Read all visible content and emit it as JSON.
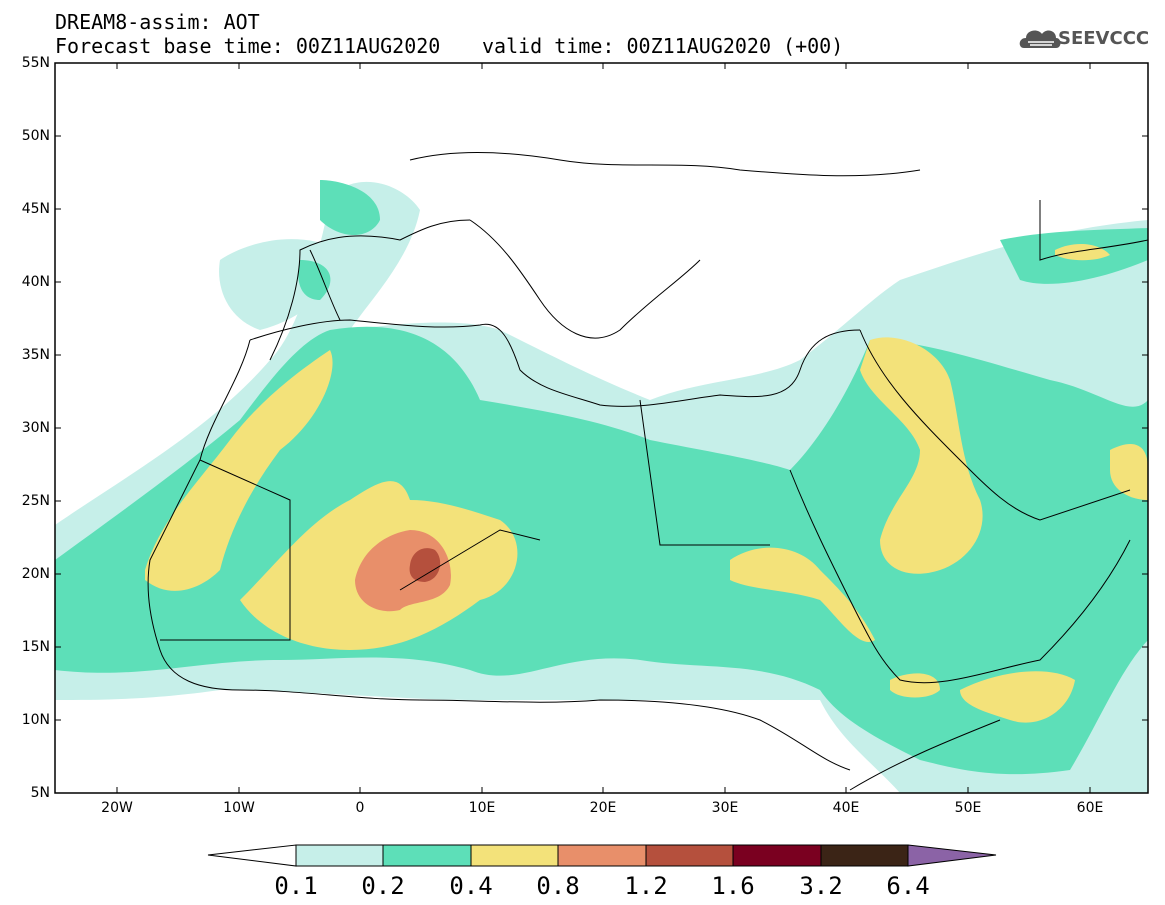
{
  "header": {
    "line1": "DREAM8-assim: AOT",
    "line2": "Forecast base time: 00Z11AUG2020",
    "valid": "valid time: 00Z11AUG2020 (+00)",
    "logo_text": "SEEVCCC",
    "logo_icon": "cloud-icon"
  },
  "axes": {
    "lat_labels": [
      "55N",
      "50N",
      "45N",
      "40N",
      "35N",
      "30N",
      "25N",
      "20N",
      "15N",
      "10N",
      "5N"
    ],
    "lon_labels": [
      "20W",
      "10W",
      "0",
      "10E",
      "20E",
      "30E",
      "40E",
      "50E",
      "60E"
    ]
  },
  "colorbar": {
    "labels": [
      "0.1",
      "0.2",
      "0.4",
      "0.8",
      "1.2",
      "1.6",
      "3.2",
      "6.4"
    ],
    "colors": [
      "#c6efe9",
      "#5ddfb8",
      "#f3e27a",
      "#e88f6a",
      "#b5503d",
      "#7a0020",
      "#3b2416",
      "#8b63a6"
    ]
  }
}
